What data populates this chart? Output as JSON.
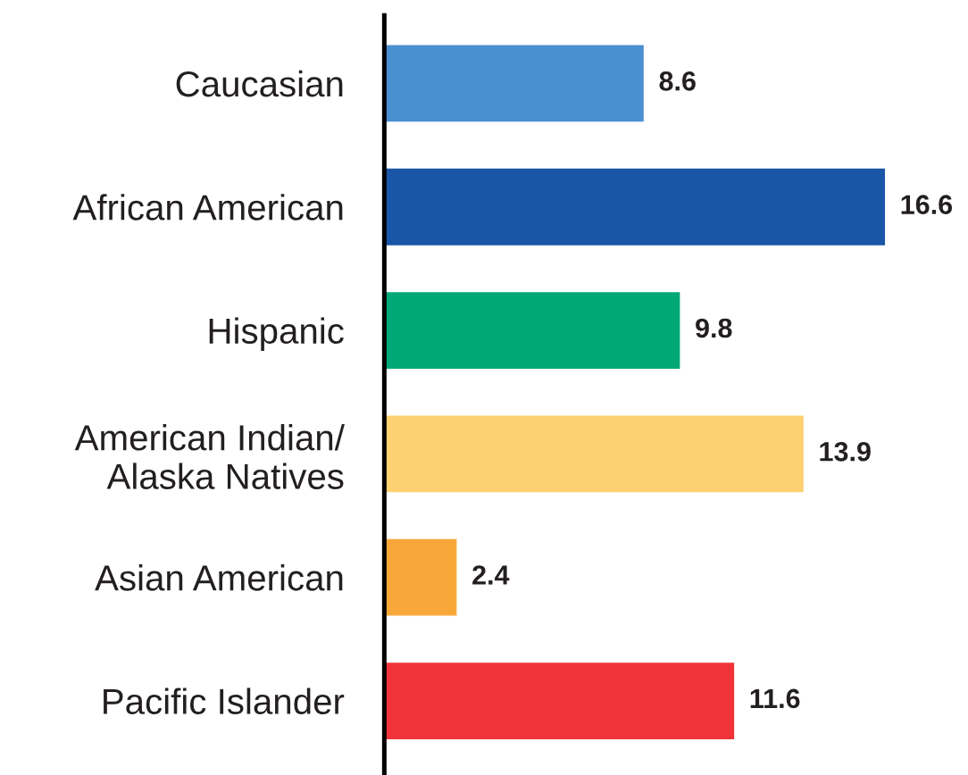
{
  "chart_data": {
    "type": "bar",
    "orientation": "horizontal",
    "categories": [
      "Caucasian",
      "African American",
      "Hispanic",
      "American Indian/\nAlaska Natives",
      "Asian American",
      "Pacific Islander"
    ],
    "values": [
      8.6,
      16.6,
      9.8,
      13.9,
      2.4,
      11.6
    ],
    "colors": [
      "#4a90d0",
      "#1a56a8",
      "#00a878",
      "#fdd070",
      "#f8a838",
      "#ef3338"
    ],
    "data_labels": true,
    "tick_labels": "y",
    "grid": false,
    "legend": false
  }
}
